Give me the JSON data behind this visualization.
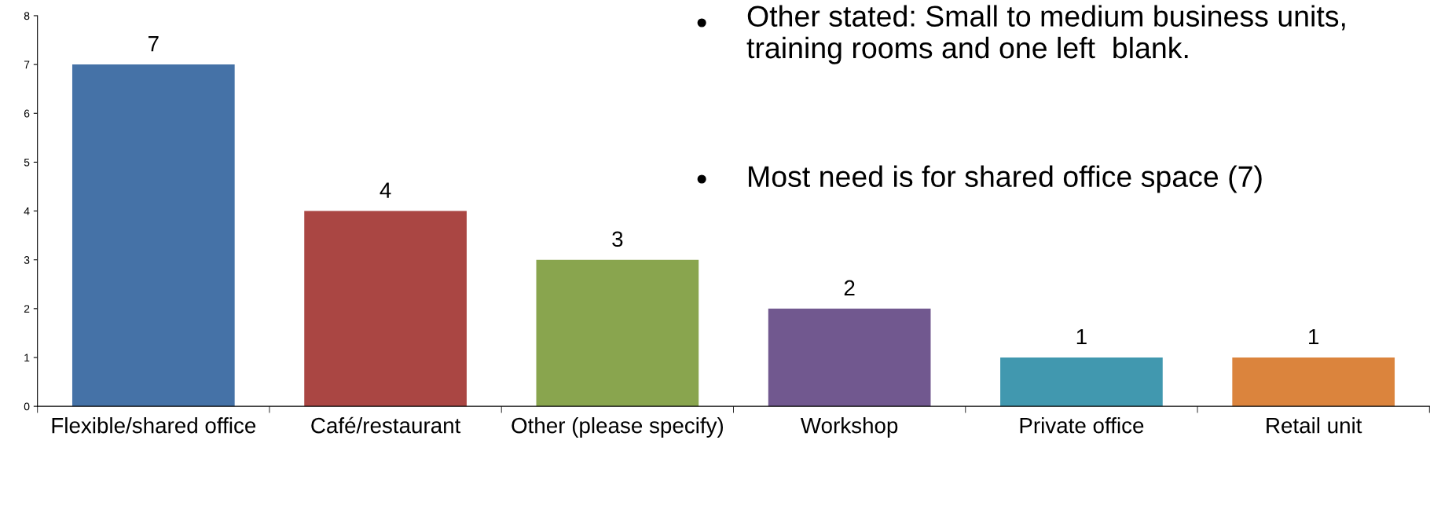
{
  "chart_data": {
    "type": "bar",
    "categories": [
      "Flexible/shared office",
      "Café/restaurant",
      "Other (please specify)",
      "Workshop",
      "Private office",
      "Retail unit"
    ],
    "values": [
      7,
      4,
      3,
      2,
      1,
      1
    ],
    "colors": [
      "#4572a7",
      "#aa4643",
      "#89a54e",
      "#71588f",
      "#4198af",
      "#db843d"
    ],
    "ylim": [
      0,
      8
    ],
    "yticks": [
      0,
      1,
      2,
      3,
      4,
      5,
      6,
      7,
      8
    ],
    "grid": false,
    "data_labels": true,
    "annotations": [
      "Other stated: Small to medium business units, training rooms and one left  blank.",
      "Most need is for shared office space (7)"
    ]
  }
}
